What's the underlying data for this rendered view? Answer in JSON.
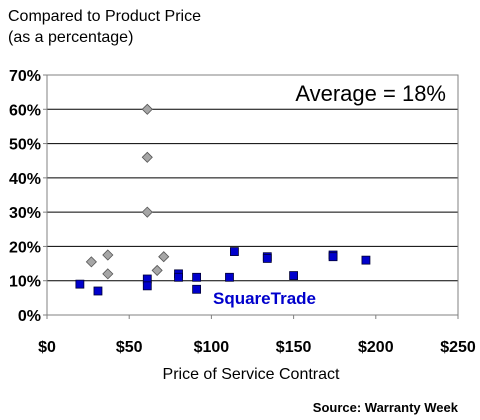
{
  "chart_data": {
    "type": "scatter",
    "ylabel_lines": [
      "Compared to Product Price",
      "(as a percentage)"
    ],
    "xlabel": "Price of Service Contract",
    "annotation": "Average = 18%",
    "source": "Source: Warranty Week",
    "xlim": [
      0,
      250
    ],
    "ylim": [
      0,
      70
    ],
    "x_ticks": [
      {
        "value": 0,
        "label": "$0"
      },
      {
        "value": 50,
        "label": "$50"
      },
      {
        "value": 100,
        "label": "$100"
      },
      {
        "value": 150,
        "label": "$150"
      },
      {
        "value": 200,
        "label": "$200"
      },
      {
        "value": 250,
        "label": "$250"
      }
    ],
    "y_ticks": [
      {
        "value": 0,
        "label": "0%"
      },
      {
        "value": 10,
        "label": "10%"
      },
      {
        "value": 20,
        "label": "20%"
      },
      {
        "value": 30,
        "label": "30%"
      },
      {
        "value": 40,
        "label": "40%"
      },
      {
        "value": 50,
        "label": "50%"
      },
      {
        "value": 60,
        "label": "60%"
      },
      {
        "value": 70,
        "label": "70%"
      }
    ],
    "grid": "horizontal",
    "series": [
      {
        "name": "",
        "marker": "diamond",
        "color": "#a6a6a6",
        "points": [
          {
            "x": 27,
            "y": 15.5
          },
          {
            "x": 37,
            "y": 17.5
          },
          {
            "x": 37,
            "y": 12
          },
          {
            "x": 61,
            "y": 60
          },
          {
            "x": 61,
            "y": 46
          },
          {
            "x": 61,
            "y": 30
          },
          {
            "x": 67,
            "y": 13
          },
          {
            "x": 71,
            "y": 17
          }
        ]
      },
      {
        "name": "SquareTrade",
        "marker": "square",
        "color": "#0000cc",
        "points": [
          {
            "x": 20,
            "y": 9
          },
          {
            "x": 31,
            "y": 7
          },
          {
            "x": 61,
            "y": 10.5
          },
          {
            "x": 61,
            "y": 8.5
          },
          {
            "x": 80,
            "y": 12
          },
          {
            "x": 80,
            "y": 11
          },
          {
            "x": 91,
            "y": 11
          },
          {
            "x": 91,
            "y": 7.5
          },
          {
            "x": 111,
            "y": 11
          },
          {
            "x": 114,
            "y": 18.5
          },
          {
            "x": 134,
            "y": 17
          },
          {
            "x": 134,
            "y": 16.5
          },
          {
            "x": 150,
            "y": 11.5
          },
          {
            "x": 174,
            "y": 17.5
          },
          {
            "x": 174,
            "y": 17
          },
          {
            "x": 194,
            "y": 16
          }
        ]
      }
    ],
    "series_label": "SquareTrade",
    "series_label_color": "#0000cc"
  }
}
